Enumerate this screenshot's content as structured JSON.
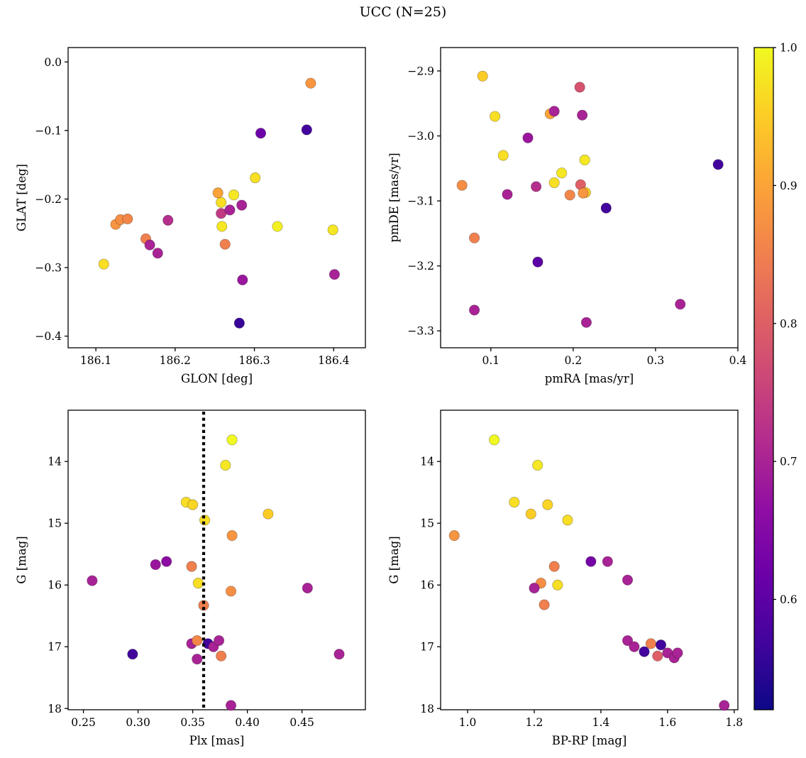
{
  "title": "UCC (N=25)",
  "colorbar": {
    "colormap": "plasma",
    "vmin": 0.52,
    "vmax": 1.0,
    "ticks": [
      1.0,
      0.9,
      0.8,
      0.7,
      0.6
    ],
    "tick_labels": [
      "1.0",
      "0.9",
      "0.8",
      "0.7",
      "0.6"
    ]
  },
  "chart_data": [
    {
      "type": "scatter",
      "name": "glon-glat",
      "xlabel": "GLON [deg]",
      "ylabel": "GLAT [deg]",
      "xlim": [
        186.065,
        186.44
      ],
      "ylim": [
        0.021,
        -0.417
      ],
      "xticks": [
        186.1,
        186.2,
        186.3,
        186.4
      ],
      "xtick_labels": [
        "186.1",
        "186.2",
        "186.3",
        "186.4"
      ],
      "yticks": [
        0.0,
        -0.1,
        -0.2,
        -0.3,
        -0.4
      ],
      "ytick_labels": [
        "0.0",
        "−0.1",
        "−0.2",
        "−0.3",
        "−0.4"
      ],
      "x": [
        186.11,
        186.125,
        186.131,
        186.14,
        186.163,
        186.168,
        186.178,
        186.191,
        186.254,
        186.258,
        186.258,
        186.259,
        186.263,
        186.269,
        186.274,
        186.284,
        186.285,
        186.281,
        186.301,
        186.308,
        186.329,
        186.366,
        186.371,
        186.399,
        186.401
      ],
      "y": [
        -0.295,
        -0.237,
        -0.23,
        -0.229,
        -0.258,
        -0.267,
        -0.279,
        -0.231,
        -0.191,
        -0.205,
        -0.221,
        -0.24,
        -0.266,
        -0.216,
        -0.194,
        -0.209,
        -0.318,
        -0.381,
        -0.169,
        -0.104,
        -0.24,
        -0.099,
        -0.031,
        -0.245,
        -0.31
      ],
      "c": [
        0.97,
        0.88,
        0.87,
        0.86,
        0.85,
        0.7,
        0.7,
        0.72,
        0.9,
        0.97,
        0.74,
        0.98,
        0.85,
        0.7,
        0.98,
        0.7,
        0.68,
        0.56,
        0.97,
        0.62,
        0.99,
        0.57,
        0.88,
        0.98,
        0.7
      ]
    },
    {
      "type": "scatter",
      "name": "pmra-pmde",
      "xlabel": "pmRA [mas/yr]",
      "ylabel": "pmDE [mas/yr]",
      "xlim": [
        0.039,
        0.4
      ],
      "ylim": [
        -2.864,
        -3.326
      ],
      "xticks": [
        0.1,
        0.2,
        0.3,
        0.4
      ],
      "xtick_labels": [
        "0.1",
        "0.2",
        "0.3",
        "0.4"
      ],
      "yticks": [
        -2.9,
        -3.0,
        -3.1,
        -3.2,
        -3.3
      ],
      "ytick_labels": [
        "−2.9",
        "−3.0",
        "−3.1",
        "−3.2",
        "−3.3"
      ],
      "x": [
        0.09,
        0.105,
        0.115,
        0.065,
        0.08,
        0.08,
        0.12,
        0.145,
        0.155,
        0.157,
        0.172,
        0.177,
        0.177,
        0.186,
        0.196,
        0.208,
        0.211,
        0.214,
        0.209,
        0.215,
        0.212,
        0.216,
        0.24,
        0.33,
        0.376
      ],
      "y": [
        -2.908,
        -2.97,
        -3.03,
        -3.076,
        -3.157,
        -3.268,
        -3.09,
        -3.003,
        -3.078,
        -3.194,
        -2.966,
        -2.962,
        -3.072,
        -3.057,
        -3.091,
        -2.925,
        -2.968,
        -3.037,
        -3.075,
        -3.087,
        -3.088,
        -3.287,
        -3.111,
        -3.259,
        -3.044
      ],
      "c": [
        0.95,
        0.97,
        0.97,
        0.87,
        0.85,
        0.7,
        0.7,
        0.68,
        0.72,
        0.6,
        0.9,
        0.7,
        0.97,
        0.98,
        0.86,
        0.78,
        0.7,
        0.98,
        0.8,
        0.95,
        0.88,
        0.7,
        0.57,
        0.7,
        0.57
      ]
    },
    {
      "type": "scatter",
      "name": "plx-g",
      "xlabel": "Plx [mas]",
      "ylabel": "G [mag]",
      "xlim": [
        0.236,
        0.508
      ],
      "ylim": [
        13.17,
        18.02
      ],
      "xticks": [
        0.25,
        0.3,
        0.35,
        0.4,
        0.45
      ],
      "xtick_labels": [
        "0.25",
        "0.30",
        "0.35",
        "0.40",
        "0.45"
      ],
      "yticks": [
        14,
        15,
        16,
        17,
        18
      ],
      "ytick_labels": [
        "14",
        "15",
        "16",
        "17",
        "18"
      ],
      "vline": {
        "x": 0.36,
        "style": "dotted",
        "color": "#000000"
      },
      "x": [
        0.386,
        0.38,
        0.344,
        0.35,
        0.361,
        0.386,
        0.419,
        0.258,
        0.316,
        0.326,
        0.349,
        0.355,
        0.36,
        0.385,
        0.455,
        0.295,
        0.349,
        0.354,
        0.354,
        0.364,
        0.369,
        0.374,
        0.376,
        0.385,
        0.484
      ],
      "y": [
        13.65,
        14.06,
        14.66,
        14.7,
        14.95,
        15.2,
        14.85,
        15.93,
        15.67,
        15.62,
        15.7,
        15.97,
        16.33,
        16.1,
        16.05,
        17.12,
        16.95,
        16.9,
        17.2,
        16.95,
        17.0,
        16.9,
        17.15,
        17.95,
        17.12
      ],
      "c": [
        1.0,
        0.98,
        0.97,
        0.96,
        0.97,
        0.88,
        0.95,
        0.7,
        0.68,
        0.66,
        0.85,
        0.97,
        0.85,
        0.87,
        0.7,
        0.57,
        0.7,
        0.86,
        0.7,
        0.57,
        0.7,
        0.7,
        0.85,
        0.7,
        0.7
      ]
    },
    {
      "type": "scatter",
      "name": "bprp-g",
      "xlabel": "BP-RP [mag]",
      "ylabel": "G [mag]",
      "xlim": [
        0.919,
        1.811
      ],
      "ylim": [
        13.17,
        18.02
      ],
      "xticks": [
        1.0,
        1.2,
        1.4,
        1.6,
        1.8
      ],
      "xtick_labels": [
        "1.0",
        "1.2",
        "1.4",
        "1.6",
        "1.8"
      ],
      "yticks": [
        14,
        15,
        16,
        17,
        18
      ],
      "ytick_labels": [
        "14",
        "15",
        "16",
        "17",
        "18"
      ],
      "x": [
        1.08,
        1.21,
        1.14,
        1.24,
        1.19,
        1.3,
        0.96,
        1.37,
        1.42,
        1.26,
        1.48,
        1.22,
        1.2,
        1.27,
        1.23,
        1.48,
        1.5,
        1.53,
        1.55,
        1.57,
        1.58,
        1.6,
        1.62,
        1.63,
        1.77
      ],
      "y": [
        13.65,
        14.06,
        14.66,
        14.7,
        14.85,
        14.95,
        15.2,
        15.62,
        15.62,
        15.7,
        15.92,
        15.97,
        16.05,
        16.0,
        16.32,
        16.9,
        17.0,
        17.08,
        16.95,
        17.15,
        16.97,
        17.1,
        17.18,
        17.1,
        17.95
      ],
      "c": [
        1.0,
        0.98,
        0.97,
        0.96,
        0.95,
        0.97,
        0.88,
        0.63,
        0.7,
        0.85,
        0.7,
        0.87,
        0.7,
        0.97,
        0.85,
        0.7,
        0.7,
        0.57,
        0.85,
        0.8,
        0.57,
        0.7,
        0.7,
        0.7,
        0.7
      ]
    }
  ]
}
